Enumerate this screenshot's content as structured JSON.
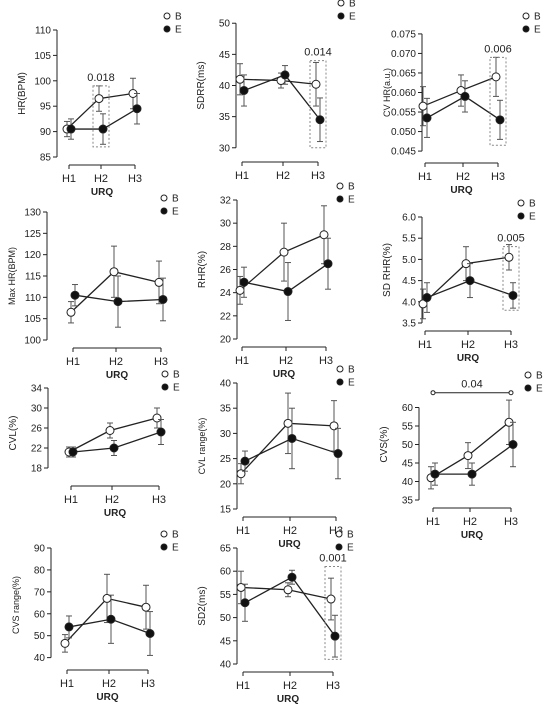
{
  "legend": {
    "open_label": "B",
    "filled_label": "E"
  },
  "colors": {
    "axis": "#222222",
    "open_fill": "#ffffff",
    "filled_fill": "#111111",
    "sig_box": "#888888"
  },
  "chart_data": [
    {
      "type": "line",
      "ylabel": "HR(BPM)",
      "xlabel": "URQ",
      "categories": [
        "H1",
        "H2",
        "H3"
      ],
      "yticks": [
        85,
        90,
        95,
        100,
        105,
        110
      ],
      "ylim": [
        85,
        110
      ],
      "series": [
        {
          "name": "B",
          "marker": "open",
          "values": [
            90.5,
            96.5,
            97.5
          ],
          "errors": [
            1.5,
            2.5,
            3
          ]
        },
        {
          "name": "E",
          "marker": "filled",
          "values": [
            90.5,
            90.5,
            94.5
          ],
          "errors": [
            2,
            3,
            3
          ]
        }
      ],
      "annotations": [
        {
          "text": "0.018",
          "category": "H2",
          "y_range": [
            87,
            99
          ]
        }
      ]
    },
    {
      "type": "line",
      "ylabel": "SDRR(ms)",
      "xlabel": "",
      "categories": [
        "H1",
        "H2",
        "H3"
      ],
      "yticks": [
        30,
        35,
        40,
        45,
        50
      ],
      "ylim": [
        29,
        51
      ],
      "series": [
        {
          "name": "B",
          "marker": "open",
          "values": [
            41,
            40.8,
            40.2
          ],
          "errors": [
            2.5,
            1.2,
            3.5
          ]
        },
        {
          "name": "E",
          "marker": "filled",
          "values": [
            39.2,
            41.7,
            34.5
          ],
          "errors": [
            2.5,
            1.5,
            3.5
          ]
        }
      ],
      "annotations": [
        {
          "text": "0.014",
          "category": "H3",
          "y_range": [
            30,
            44
          ]
        }
      ]
    },
    {
      "type": "line",
      "ylabel": "CV HR(a.u.)",
      "xlabel": "URQ",
      "categories": [
        "H1",
        "H2",
        "H3"
      ],
      "yticks": [
        0.045,
        0.05,
        0.055,
        0.06,
        0.065,
        0.07,
        0.075
      ],
      "ylim": [
        0.044,
        0.076
      ],
      "series": [
        {
          "name": "B",
          "marker": "open",
          "values": [
            0.0565,
            0.0605,
            0.064
          ],
          "errors": [
            0.005,
            0.004,
            0.005
          ]
        },
        {
          "name": "E",
          "marker": "filled",
          "values": [
            0.0535,
            0.059,
            0.053
          ],
          "errors": [
            0.005,
            0.004,
            0.005
          ]
        }
      ],
      "annotations": [
        {
          "text": "0.006",
          "category": "H3",
          "y_range": [
            0.0465,
            0.069
          ]
        }
      ]
    },
    {
      "type": "line",
      "ylabel": "Max HR(BPM)",
      "xlabel": "URQ",
      "categories": [
        "H1",
        "H2",
        "H3"
      ],
      "yticks": [
        100,
        105,
        110,
        115,
        120,
        125,
        130
      ],
      "ylim": [
        100,
        130
      ],
      "series": [
        {
          "name": "B",
          "marker": "open",
          "values": [
            106.5,
            116,
            113.5
          ],
          "errors": [
            2.5,
            6,
            5
          ]
        },
        {
          "name": "E",
          "marker": "filled",
          "values": [
            110.5,
            109,
            109.5
          ],
          "errors": [
            2.5,
            6,
            5
          ]
        }
      ],
      "annotations": []
    },
    {
      "type": "line",
      "ylabel": "RHR(%)",
      "xlabel": "URQ",
      "categories": [
        "H1",
        "H2",
        "H3"
      ],
      "yticks": [
        20,
        22,
        24,
        26,
        28,
        30,
        32
      ],
      "ylim": [
        20,
        32
      ],
      "series": [
        {
          "name": "B",
          "marker": "open",
          "values": [
            24.2,
            27.5,
            29
          ],
          "errors": [
            1.2,
            2.5,
            2.5
          ]
        },
        {
          "name": "E",
          "marker": "filled",
          "values": [
            24.9,
            24.1,
            26.5
          ],
          "errors": [
            1.3,
            2.5,
            2.2
          ]
        }
      ],
      "annotations": []
    },
    {
      "type": "line",
      "ylabel": "SD RHR(%)",
      "xlabel": "URQ",
      "categories": [
        "H1",
        "H2",
        "H3"
      ],
      "yticks": [
        3.5,
        4.0,
        4.5,
        5.0,
        5.5,
        6.0
      ],
      "ylim": [
        3.5,
        6.0
      ],
      "series": [
        {
          "name": "B",
          "marker": "open",
          "values": [
            3.95,
            4.9,
            5.05
          ],
          "errors": [
            0.35,
            0.4,
            0.3
          ]
        },
        {
          "name": "E",
          "marker": "filled",
          "values": [
            4.1,
            4.5,
            4.15
          ],
          "errors": [
            0.35,
            0.4,
            0.3
          ]
        }
      ],
      "annotations": [
        {
          "text": "0.005",
          "category": "H3",
          "y_range": [
            3.8,
            5.3
          ]
        }
      ]
    },
    {
      "type": "line",
      "ylabel": "CVL(%)",
      "xlabel": "URQ",
      "categories": [
        "H1",
        "H2",
        "H3"
      ],
      "yticks": [
        18,
        22,
        26,
        30,
        34
      ],
      "ylim": [
        16,
        34
      ],
      "series": [
        {
          "name": "B",
          "marker": "open",
          "values": [
            21.2,
            25.5,
            28
          ],
          "errors": [
            1,
            1.5,
            2
          ]
        },
        {
          "name": "E",
          "marker": "filled",
          "values": [
            21.2,
            22,
            25.2
          ],
          "errors": [
            1,
            1.5,
            2.5
          ]
        }
      ],
      "annotations": []
    },
    {
      "type": "line",
      "ylabel": "CVL range(%)",
      "xlabel": "URQ",
      "categories": [
        "H1",
        "H2",
        "H3"
      ],
      "yticks": [
        15,
        20,
        25,
        30,
        35,
        40
      ],
      "ylim": [
        15,
        40
      ],
      "series": [
        {
          "name": "B",
          "marker": "open",
          "values": [
            22,
            32,
            31.5
          ],
          "errors": [
            2,
            6,
            5
          ]
        },
        {
          "name": "E",
          "marker": "filled",
          "values": [
            24.5,
            29,
            26
          ],
          "errors": [
            2,
            6,
            5
          ]
        }
      ],
      "annotations": []
    },
    {
      "type": "line",
      "ylabel": "CVS(%)",
      "xlabel": "URQ",
      "categories": [
        "H1",
        "H2",
        "H3"
      ],
      "yticks": [
        35,
        40,
        45,
        50,
        55,
        60
      ],
      "ylim": [
        35,
        65
      ],
      "series": [
        {
          "name": "B",
          "marker": "open",
          "values": [
            41,
            47,
            56
          ],
          "errors": [
            3,
            3.5,
            6
          ]
        },
        {
          "name": "E",
          "marker": "filled",
          "values": [
            42,
            42,
            50
          ],
          "errors": [
            3,
            3,
            6
          ]
        }
      ],
      "annotations": [
        {
          "text": "0.04",
          "type": "bracket",
          "from": "H1",
          "to": "H3",
          "y": 64
        }
      ]
    },
    {
      "type": "line",
      "ylabel": "CVS range(%)",
      "xlabel": "URQ",
      "categories": [
        "H1",
        "H2",
        "H3"
      ],
      "yticks": [
        40,
        50,
        60,
        70,
        80,
        90
      ],
      "ylim": [
        38,
        90
      ],
      "series": [
        {
          "name": "B",
          "marker": "open",
          "values": [
            46.5,
            67,
            63
          ],
          "errors": [
            4,
            11,
            10
          ]
        },
        {
          "name": "E",
          "marker": "filled",
          "values": [
            54,
            57.5,
            51
          ],
          "errors": [
            5,
            11,
            10
          ]
        }
      ],
      "annotations": []
    },
    {
      "type": "line",
      "ylabel": "SD2(ms)",
      "xlabel": "URQ",
      "categories": [
        "H1",
        "H2",
        "H3"
      ],
      "yticks": [
        40,
        45,
        50,
        55,
        60,
        65
      ],
      "ylim": [
        40,
        65
      ],
      "series": [
        {
          "name": "B",
          "marker": "open",
          "values": [
            56.5,
            56,
            54
          ],
          "errors": [
            3.5,
            1.5,
            4.5
          ]
        },
        {
          "name": "E",
          "marker": "filled",
          "values": [
            53.2,
            58.7,
            46
          ],
          "errors": [
            4,
            1.5,
            4.5
          ]
        }
      ],
      "annotations": [
        {
          "text": "0.001",
          "category": "H3",
          "y_range": [
            41,
            61
          ]
        }
      ]
    }
  ]
}
